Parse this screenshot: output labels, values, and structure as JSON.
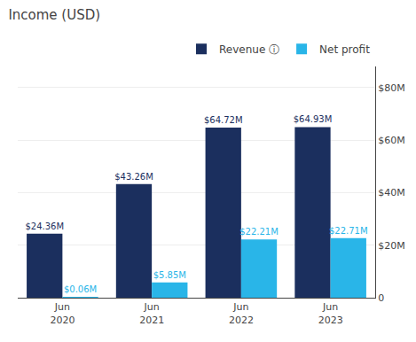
{
  "chart_data": {
    "type": "bar",
    "title": "Income (USD)",
    "categories": [
      "Jun\n2020",
      "Jun\n2021",
      "Jun\n2022",
      "Jun\n2023"
    ],
    "series": [
      {
        "name": "Revenue ⓘ",
        "color": "#1b2f5e",
        "values": [
          24.36,
          43.26,
          64.72,
          64.93
        ],
        "value_labels": [
          "$24.36M",
          "$43.26M",
          "$64.72M",
          "$64.93M"
        ]
      },
      {
        "name": "Net profit",
        "color": "#29b5e8",
        "values": [
          0.06,
          5.85,
          22.21,
          22.71
        ],
        "value_labels": [
          "$0.06M",
          "$5.85M",
          "$22.21M",
          "$22.71M"
        ]
      }
    ],
    "ylim": [
      0,
      88
    ],
    "yticks": [
      0,
      {
        "value": 20,
        "label": "$20M"
      },
      {
        "value": 40,
        "label": "$40M"
      },
      {
        "value": 60,
        "label": "$60M"
      },
      {
        "value": 80,
        "label": "$80M"
      }
    ],
    "grid": true,
    "data_labels": true,
    "legend": "top"
  }
}
